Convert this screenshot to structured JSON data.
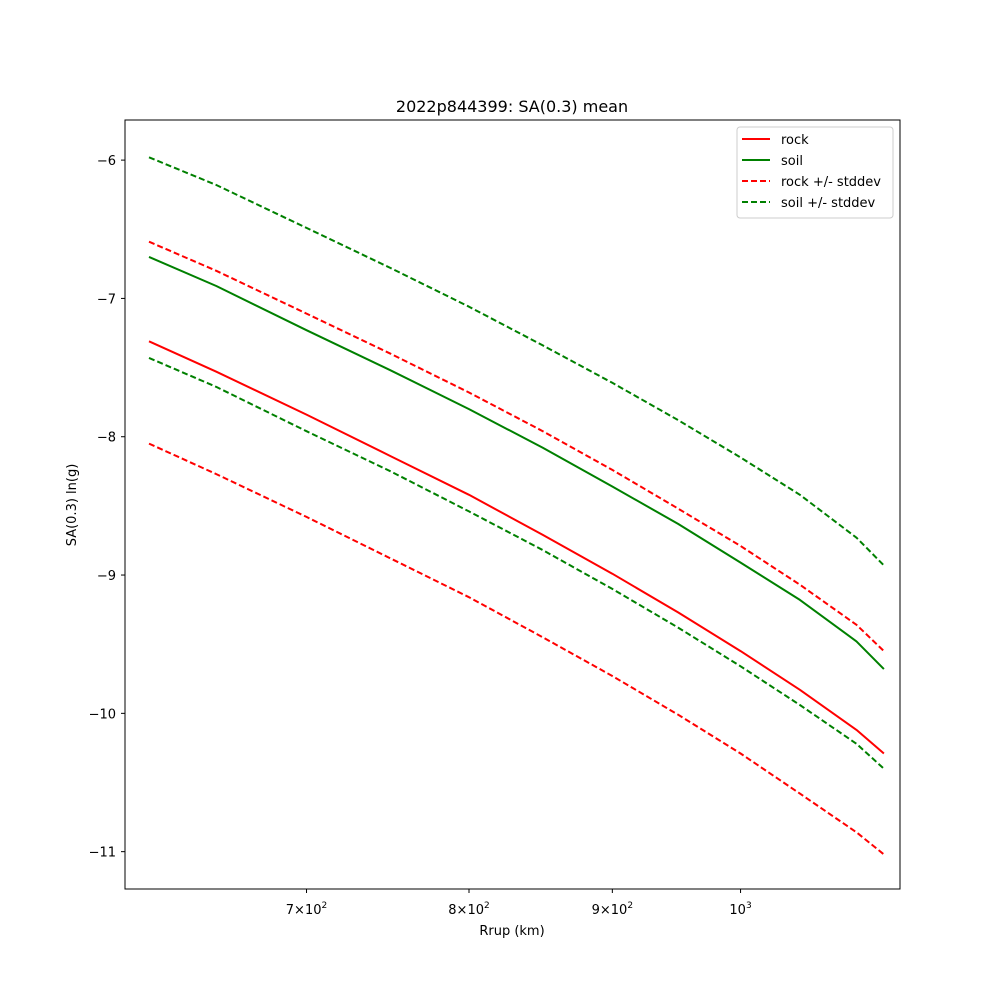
{
  "chart_data": {
    "type": "line",
    "title": "2022p844399: SA(0.3) mean",
    "xlabel": "Rrup (km)",
    "ylabel": "SA(0.3) ln(g)",
    "xscale": "log",
    "xlim": [
      603,
      1140
    ],
    "ylim": [
      -11.27,
      -5.71
    ],
    "x_ticks": [
      {
        "value": 700,
        "mantissa": "7",
        "base": "10",
        "exp": "2"
      },
      {
        "value": 800,
        "mantissa": "8",
        "base": "10",
        "exp": "2"
      },
      {
        "value": 900,
        "mantissa": "9",
        "base": "10",
        "exp": "2"
      },
      {
        "value": 1000,
        "mantissa": "",
        "base": "10",
        "exp": "3"
      }
    ],
    "y_ticks": [
      {
        "value": -6,
        "label": "−6"
      },
      {
        "value": -7,
        "label": "−7"
      },
      {
        "value": -8,
        "label": "−8"
      },
      {
        "value": -9,
        "label": "−9"
      },
      {
        "value": -10,
        "label": "−10"
      },
      {
        "value": -11,
        "label": "−11"
      }
    ],
    "grid": false,
    "legend_position": "top-right",
    "x": [
      615,
      650,
      700,
      750,
      800,
      850,
      900,
      950,
      1000,
      1050,
      1100,
      1125
    ],
    "series": [
      {
        "name": "rock",
        "color": "#ff0000",
        "dash": "solid",
        "values": [
          -7.31,
          -7.53,
          -7.84,
          -8.14,
          -8.42,
          -8.71,
          -8.99,
          -9.27,
          -9.55,
          -9.83,
          -10.12,
          -10.29
        ]
      },
      {
        "name": "soil",
        "color": "#008000",
        "dash": "solid",
        "values": [
          -6.7,
          -6.91,
          -7.23,
          -7.52,
          -7.8,
          -8.08,
          -8.36,
          -8.63,
          -8.91,
          -9.18,
          -9.48,
          -9.68
        ]
      },
      {
        "name": "rock +/- stddev",
        "color": "#ff0000",
        "dash": "dashed",
        "values": [
          -6.59,
          -6.8,
          -7.11,
          -7.4,
          -7.68,
          -7.96,
          -8.24,
          -8.52,
          -8.79,
          -9.07,
          -9.36,
          -9.55
        ]
      },
      {
        "name": "rock +/- stddev",
        "color": "#ff0000",
        "dash": "dashed",
        "legend": false,
        "values": [
          -8.05,
          -8.27,
          -8.58,
          -8.88,
          -9.16,
          -9.45,
          -9.73,
          -10.01,
          -10.29,
          -10.58,
          -10.86,
          -11.02
        ]
      },
      {
        "name": "soil +/- stddev",
        "color": "#008000",
        "dash": "dashed",
        "values": [
          -5.98,
          -6.18,
          -6.49,
          -6.78,
          -7.06,
          -7.34,
          -7.61,
          -7.88,
          -8.15,
          -8.42,
          -8.73,
          -8.93
        ]
      },
      {
        "name": "soil +/- stddev",
        "color": "#008000",
        "dash": "dashed",
        "legend": false,
        "values": [
          -7.43,
          -7.64,
          -7.96,
          -8.25,
          -8.54,
          -8.82,
          -9.1,
          -9.38,
          -9.66,
          -9.94,
          -10.22,
          -10.4
        ]
      }
    ]
  }
}
